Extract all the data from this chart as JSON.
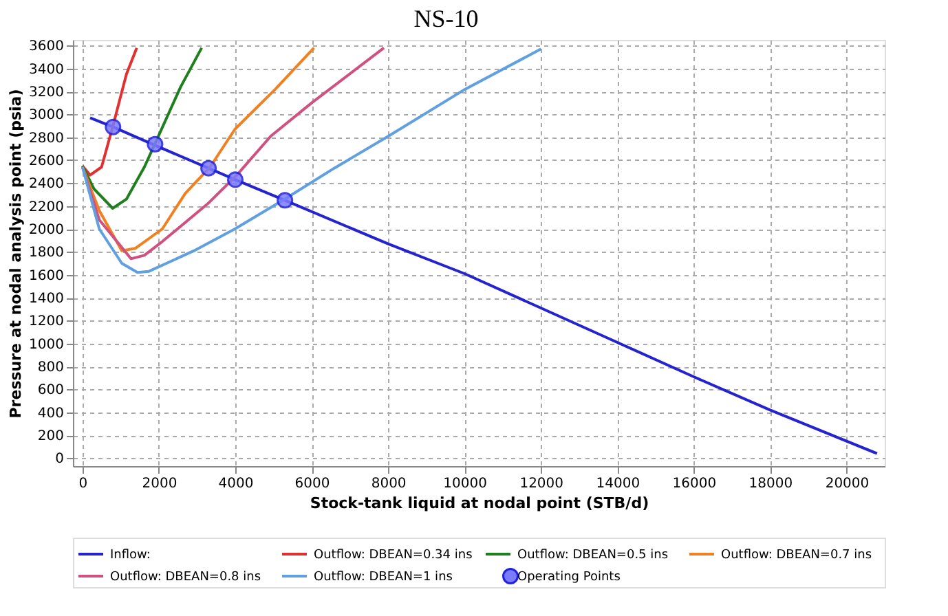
{
  "chart_data": {
    "type": "line",
    "title": "NS-10",
    "xlabel": "Stock-tank liquid at nodal point (STB/d)",
    "ylabel": "Pressure at nodal analysis point (psia)",
    "xlim": [
      -250,
      21000
    ],
    "ylim": [
      -70,
      3650
    ],
    "xticks": [
      0,
      2000,
      4000,
      6000,
      8000,
      10000,
      12000,
      14000,
      16000,
      18000,
      20000
    ],
    "yticks": [
      0,
      200,
      400,
      600,
      800,
      1000,
      1200,
      1400,
      1600,
      1800,
      2000,
      2200,
      2400,
      2600,
      2800,
      3000,
      3200,
      3400,
      3600
    ],
    "grid": true,
    "legend": "bottom",
    "line_style": "solid",
    "series": [
      {
        "name": "Inflow:",
        "color": "#2323d0",
        "x": [
          200,
          800,
          1900,
          3300,
          4000,
          5300,
          8000,
          10000,
          12000,
          14000,
          16000,
          18000,
          20800
        ],
        "values": [
          2970,
          2890,
          2730,
          2530,
          2430,
          2250,
          1870,
          1610,
          1310,
          1010,
          710,
          420,
          40
        ]
      },
      {
        "name": "Outflow: DBEAN=0.34 ins",
        "color": "#e03030",
        "x": [
          0,
          200,
          500,
          790,
          1150,
          1420
        ],
        "values": [
          2550,
          2470,
          2540,
          2890,
          3350,
          3580
        ]
      },
      {
        "name": "Outflow: DBEAN=0.5 ins",
        "color": "#1f7f1f",
        "x": [
          0,
          300,
          790,
          1150,
          1620,
          1920,
          2570,
          3120
        ],
        "values": [
          2550,
          2350,
          2180,
          2260,
          2540,
          2760,
          3240,
          3580
        ]
      },
      {
        "name": "Outflow: DBEAN=0.7 ins",
        "color": "#f08020",
        "x": [
          0,
          440,
          1030,
          1380,
          2090,
          2690,
          3340,
          3990,
          5050,
          6060
        ],
        "values": [
          2540,
          2160,
          1810,
          1830,
          2000,
          2310,
          2540,
          2870,
          3220,
          3580
        ]
      },
      {
        "name": "Outflow: DBEAN=0.8 ins",
        "color": "#d05080",
        "x": [
          0,
          440,
          1270,
          1620,
          2090,
          3280,
          4040,
          4930,
          6000,
          7890
        ],
        "values": [
          2540,
          2080,
          1740,
          1770,
          1890,
          2220,
          2470,
          2810,
          3100,
          3580
        ]
      },
      {
        "name": "Outflow: DBEAN=1 ins",
        "color": "#60a0e0",
        "x": [
          0,
          440,
          1030,
          1440,
          1740,
          2920,
          3990,
          5290,
          6590,
          8010,
          10020,
          12000
        ],
        "values": [
          2540,
          2000,
          1700,
          1620,
          1630,
          1810,
          2000,
          2260,
          2530,
          2810,
          3220,
          3570
        ]
      },
      {
        "name": "Operating Points",
        "type": "scatter",
        "marker": "circle",
        "color": "#7b7bff",
        "x": [
          800,
          1900,
          3300,
          4000,
          5300
        ],
        "values": [
          2890,
          2740,
          2530,
          2430,
          2250
        ]
      }
    ]
  }
}
